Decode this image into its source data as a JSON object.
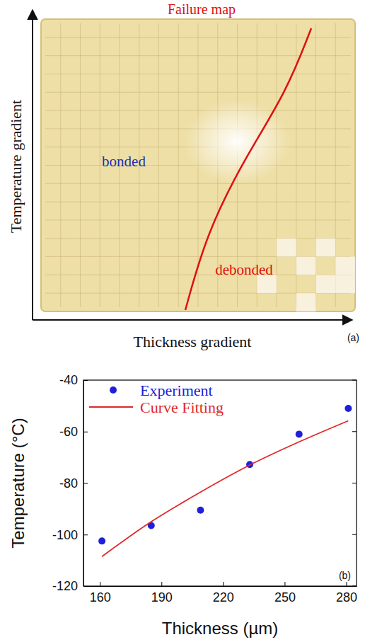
{
  "chart_data": [
    {
      "type": "diagram",
      "title": "Failure map",
      "x_label": "Thickness gradient",
      "y_label": "Temperature gradient",
      "annotations": [
        "bonded",
        "debonded"
      ],
      "panel_label": "(a)"
    },
    {
      "type": "scatter",
      "x_label": "Thickness (µm)",
      "y_label": "Temperature (°C)",
      "panel_label": "(b)",
      "xlim": [
        152,
        285
      ],
      "xticks": [
        160,
        190,
        220,
        250,
        280
      ],
      "ylim": [
        -120,
        -40
      ],
      "yticks": [
        -120,
        -100,
        -80,
        -60,
        -40
      ],
      "legend": "upper left",
      "series": [
        {
          "name": "Experiment",
          "type": "scatter",
          "color": "#2020d8",
          "marker": "circle",
          "x": [
            161,
            185,
            209,
            233,
            257,
            281
          ],
          "values": [
            -102.5,
            -96.5,
            -90.5,
            -72.8,
            -61,
            -51
          ]
        },
        {
          "name": "Curve Fitting",
          "type": "line",
          "color": "#e02828",
          "line_style": "solid",
          "x": [
            161,
            185,
            209,
            233,
            257,
            281
          ],
          "values": [
            -108.5,
            -95,
            -83.5,
            -73,
            -64,
            -55.8
          ]
        }
      ]
    }
  ]
}
